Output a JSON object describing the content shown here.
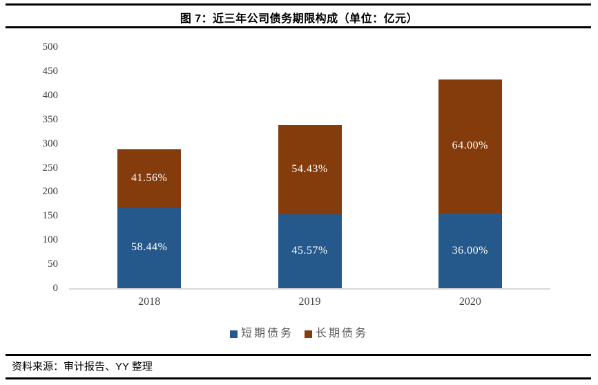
{
  "header": {
    "title": "图 7：近三年公司债务期限构成（单位：亿元）"
  },
  "footer": {
    "source": "资料来源：审计报告、YY 整理"
  },
  "chart_data": {
    "type": "bar",
    "stacked": true,
    "title": "图 7：近三年公司债务期限构成（单位：亿元）",
    "unit": "亿元",
    "categories": [
      "2018",
      "2019",
      "2020"
    ],
    "series": [
      {
        "name": "短期债务",
        "color": "#26598b",
        "values": [
          168,
          154,
          156
        ],
        "labels": [
          "58.44%",
          "45.57%",
          "36.00%"
        ]
      },
      {
        "name": "长期债务",
        "color": "#843c0c",
        "values": [
          120,
          184,
          277
        ],
        "labels": [
          "41.56%",
          "54.43%",
          "64.00%"
        ]
      }
    ],
    "totals": [
      288,
      338,
      433
    ],
    "xlabel": "",
    "ylabel": "",
    "ylim": [
      0,
      500
    ],
    "ytick_step": 50,
    "grid": false,
    "legend_position": "bottom",
    "axis_line_color": "#d9d9d9",
    "label_text_color": "#3f3f3f",
    "percent_label_color": "#ffffff"
  }
}
